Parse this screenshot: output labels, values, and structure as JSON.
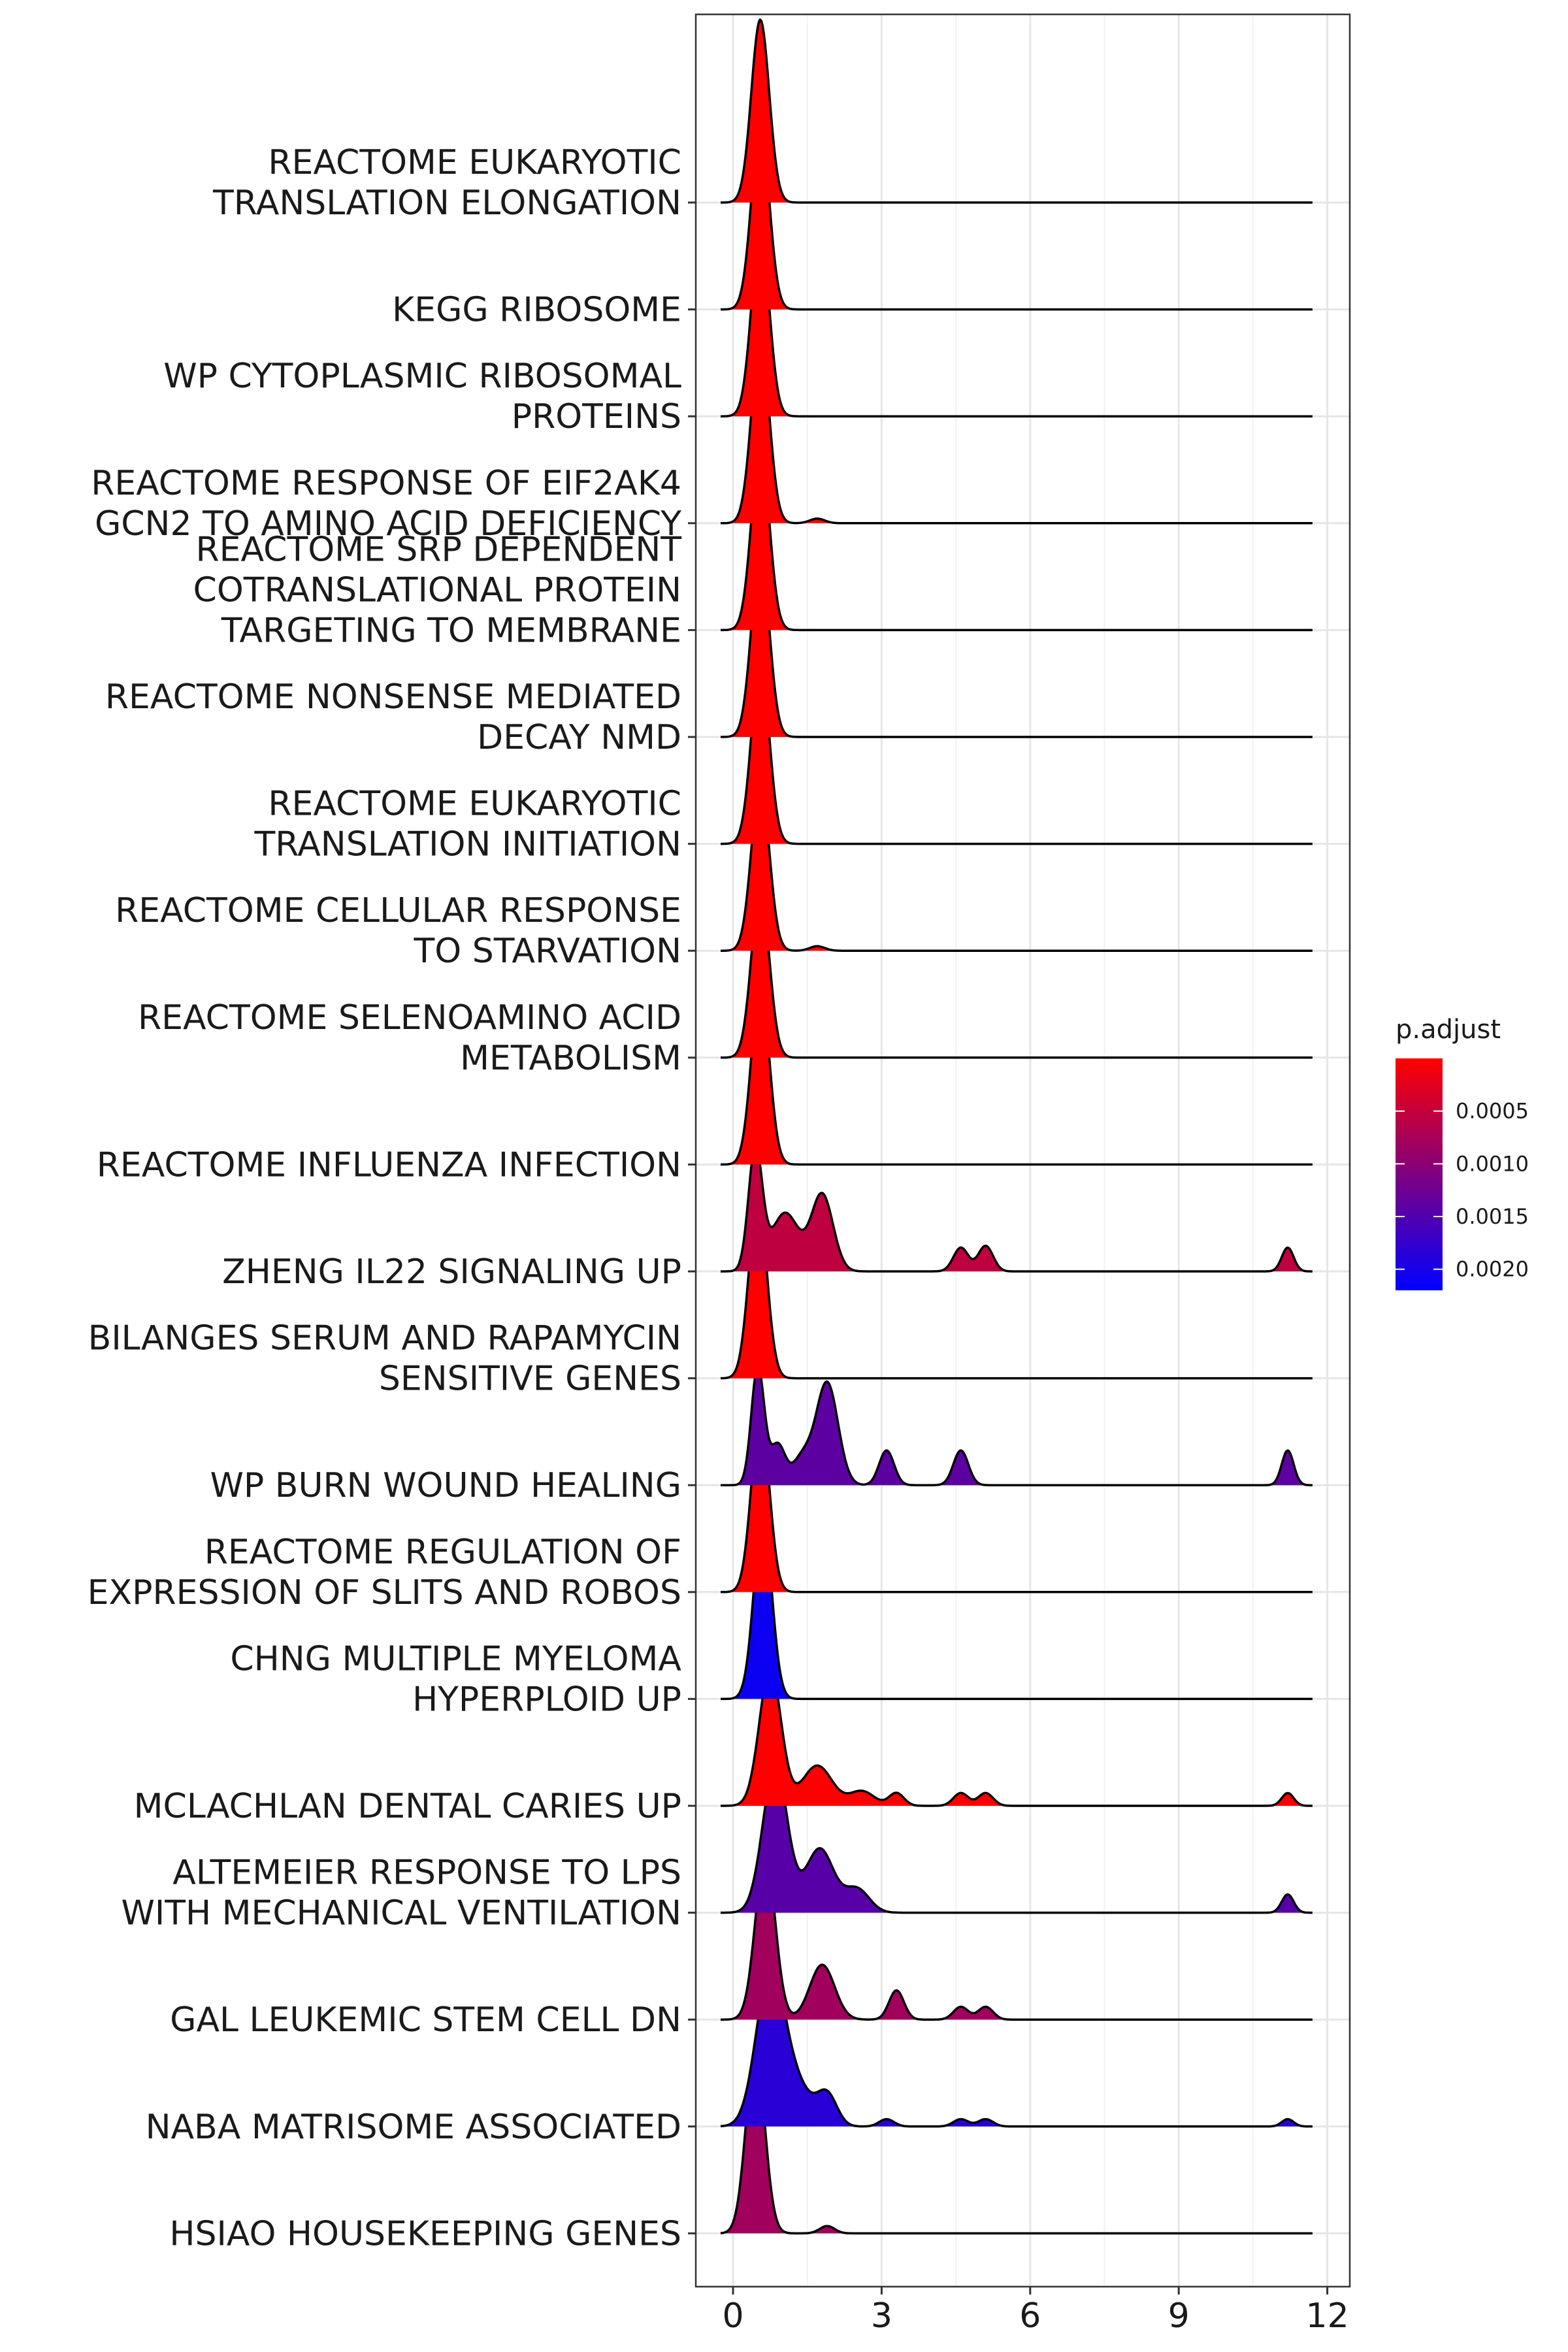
{
  "chart_data": {
    "type": "ridgeline",
    "x_ticks": [
      0,
      3,
      6,
      9,
      12
    ],
    "xlim": [
      -0.8,
      12.35
    ],
    "grid": true,
    "legend": {
      "title": "p.adjust",
      "placement": "right",
      "range": [
        0.0,
        0.0022
      ],
      "ticks": [
        {
          "value": 0.0005,
          "label": "0.0005"
        },
        {
          "value": 0.001,
          "label": "0.0010"
        },
        {
          "value": 0.0015,
          "label": "0.0015"
        },
        {
          "value": 0.002,
          "label": "0.0020"
        }
      ],
      "color_low": "#FF0000",
      "color_high": "#0000FF"
    },
    "series": [
      {
        "name": "REACTOME EUKARYOTIC TRANSLATION ELONGATION",
        "lines": [
          "REACTOME EUKARYOTIC",
          "TRANSLATION ELONGATION"
        ],
        "p_adjust": 0.0,
        "peaks": [
          [
            0.55,
            1.0,
            0.18
          ]
        ]
      },
      {
        "name": "KEGG RIBOSOME",
        "lines": [
          "KEGG RIBOSOME"
        ],
        "p_adjust": 0.0,
        "peaks": [
          [
            0.55,
            1.0,
            0.18
          ]
        ]
      },
      {
        "name": "WP CYTOPLASMIC RIBOSOMAL PROTEINS",
        "lines": [
          "WP CYTOPLASMIC RIBOSOMAL",
          "PROTEINS"
        ],
        "p_adjust": 0.0,
        "peaks": [
          [
            0.55,
            1.0,
            0.18
          ]
        ]
      },
      {
        "name": "REACTOME RESPONSE OF EIF2AK4 GCN2 TO AMINO ACID DEFICIENCY",
        "lines": [
          "REACTOME RESPONSE OF EIF2AK4",
          "GCN2 TO AMINO ACID DEFICIENCY"
        ],
        "p_adjust": 0.0,
        "peaks": [
          [
            0.55,
            1.0,
            0.18
          ],
          [
            1.7,
            0.025,
            0.15
          ]
        ]
      },
      {
        "name": "REACTOME SRP DEPENDENT COTRANSLATIONAL PROTEIN TARGETING TO MEMBRANE",
        "lines": [
          "REACTOME SRP DEPENDENT",
          "COTRANSLATIONAL PROTEIN",
          "TARGETING TO MEMBRANE"
        ],
        "p_adjust": 0.0,
        "peaks": [
          [
            0.55,
            1.0,
            0.18
          ]
        ]
      },
      {
        "name": "REACTOME NONSENSE MEDIATED DECAY NMD",
        "lines": [
          "REACTOME NONSENSE MEDIATED",
          "DECAY NMD"
        ],
        "p_adjust": 0.0,
        "peaks": [
          [
            0.55,
            1.0,
            0.18
          ]
        ]
      },
      {
        "name": "REACTOME EUKARYOTIC TRANSLATION INITIATION",
        "lines": [
          "REACTOME EUKARYOTIC",
          "TRANSLATION INITIATION"
        ],
        "p_adjust": 0.0,
        "peaks": [
          [
            0.55,
            0.99,
            0.18
          ]
        ]
      },
      {
        "name": "REACTOME CELLULAR RESPONSE TO STARVATION",
        "lines": [
          "REACTOME CELLULAR RESPONSE",
          "TO STARVATION"
        ],
        "p_adjust": 0.0,
        "peaks": [
          [
            0.55,
            0.92,
            0.18
          ],
          [
            1.7,
            0.025,
            0.15
          ]
        ]
      },
      {
        "name": "REACTOME SELENOAMINO ACID METABOLISM",
        "lines": [
          "REACTOME SELENOAMINO ACID",
          "METABOLISM"
        ],
        "p_adjust": 0.0,
        "peaks": [
          [
            0.55,
            0.92,
            0.18
          ]
        ]
      },
      {
        "name": "REACTOME INFLUENZA INFECTION",
        "lines": [
          "REACTOME INFLUENZA INFECTION"
        ],
        "p_adjust": 0.0,
        "peaks": [
          [
            0.55,
            0.98,
            0.18
          ]
        ]
      },
      {
        "name": "ZHENG IL22 SIGNALING UP",
        "lines": [
          "ZHENG IL22 SIGNALING UP"
        ],
        "p_adjust": 0.00055,
        "peaks": [
          [
            0.45,
            0.66,
            0.14
          ],
          [
            1.05,
            0.32,
            0.28
          ],
          [
            1.8,
            0.42,
            0.22
          ],
          [
            4.6,
            0.13,
            0.15
          ],
          [
            5.1,
            0.14,
            0.15
          ],
          [
            11.2,
            0.13,
            0.12
          ]
        ]
      },
      {
        "name": "BILANGES SERUM AND RAPAMYCIN SENSITIVE GENES",
        "lines": [
          "BILANGES SERUM AND RAPAMYCIN",
          "SENSITIVE GENES"
        ],
        "p_adjust": 0.0,
        "peaks": [
          [
            0.5,
            0.98,
            0.18
          ]
        ]
      },
      {
        "name": "WP BURN WOUND HEALING",
        "lines": [
          "WP BURN WOUND HEALING"
        ],
        "p_adjust": 0.0014,
        "peaks": [
          [
            0.5,
            0.65,
            0.13
          ],
          [
            0.9,
            0.22,
            0.15
          ],
          [
            1.4,
            0.15,
            0.2
          ],
          [
            1.9,
            0.56,
            0.22
          ],
          [
            3.1,
            0.19,
            0.15
          ],
          [
            4.6,
            0.19,
            0.15
          ],
          [
            11.2,
            0.19,
            0.12
          ]
        ]
      },
      {
        "name": "REACTOME REGULATION OF EXPRESSION OF SLITS AND ROBOS",
        "lines": [
          "REACTOME REGULATION OF",
          "EXPRESSION OF SLITS AND ROBOS"
        ],
        "p_adjust": 0.0,
        "peaks": [
          [
            0.55,
            0.97,
            0.18
          ]
        ]
      },
      {
        "name": "CHNG MULTIPLE MYELOMA HYPERPLOID UP",
        "lines": [
          "CHNG MULTIPLE MYELOMA",
          "HYPERPLOID UP"
        ],
        "p_adjust": 0.0021,
        "peaks": [
          [
            0.6,
            0.99,
            0.18
          ]
        ]
      },
      {
        "name": "MCLACHLAN DENTAL CARIES UP",
        "lines": [
          "MCLACHLAN DENTAL CARIES UP"
        ],
        "p_adjust": 0.0,
        "peaks": [
          [
            0.75,
            0.75,
            0.22
          ],
          [
            1.7,
            0.22,
            0.3
          ],
          [
            2.6,
            0.08,
            0.25
          ],
          [
            3.3,
            0.07,
            0.15
          ],
          [
            4.6,
            0.07,
            0.15
          ],
          [
            5.1,
            0.07,
            0.15
          ],
          [
            11.2,
            0.07,
            0.12
          ]
        ]
      },
      {
        "name": "ALTEMEIER RESPONSE TO LPS WITH MECHANICAL VENTILATION",
        "lines": [
          "ALTEMEIER RESPONSE TO LPS",
          "WITH MECHANICAL VENTILATION"
        ],
        "p_adjust": 0.00145,
        "peaks": [
          [
            0.85,
            0.8,
            0.25
          ],
          [
            1.75,
            0.35,
            0.28
          ],
          [
            2.5,
            0.13,
            0.25
          ],
          [
            11.2,
            0.1,
            0.12
          ]
        ]
      },
      {
        "name": "GAL LEUKEMIC STEM CELL DN",
        "lines": [
          "GAL LEUKEMIC STEM CELL DN"
        ],
        "p_adjust": 0.0008,
        "peaks": [
          [
            0.65,
            0.9,
            0.2
          ],
          [
            1.8,
            0.3,
            0.25
          ],
          [
            3.3,
            0.16,
            0.15
          ],
          [
            4.6,
            0.07,
            0.15
          ],
          [
            5.1,
            0.07,
            0.15
          ]
        ]
      },
      {
        "name": "NABA MATRISOME ASSOCIATED",
        "lines": [
          "NABA MATRISOME ASSOCIATED"
        ],
        "p_adjust": 0.00185,
        "peaks": [
          [
            0.75,
            0.85,
            0.28
          ],
          [
            1.3,
            0.2,
            0.3
          ],
          [
            1.9,
            0.17,
            0.2
          ],
          [
            3.1,
            0.04,
            0.15
          ],
          [
            4.6,
            0.04,
            0.15
          ],
          [
            5.1,
            0.04,
            0.15
          ],
          [
            11.2,
            0.04,
            0.12
          ]
        ]
      },
      {
        "name": "HSIAO HOUSEKEEPING GENES",
        "lines": [
          "HSIAO HOUSEKEEPING GENES"
        ],
        "p_adjust": 0.0008,
        "peaks": [
          [
            0.45,
            0.99,
            0.19
          ],
          [
            1.9,
            0.04,
            0.15
          ]
        ]
      }
    ]
  }
}
